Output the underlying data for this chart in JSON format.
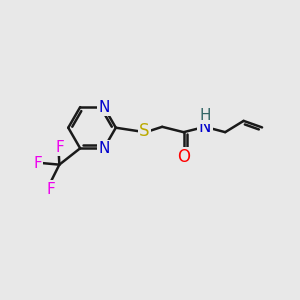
{
  "background_color": "#e8e8e8",
  "bond_color": "#1a1a1a",
  "bond_width": 1.8,
  "atom_colors": {
    "N": "#0000cc",
    "O": "#ff0000",
    "S": "#bbaa00",
    "F": "#ee00ee",
    "H": "#336666",
    "C": "#1a1a1a"
  },
  "font_size": 11,
  "figsize": [
    3.0,
    3.0
  ],
  "dpi": 100
}
